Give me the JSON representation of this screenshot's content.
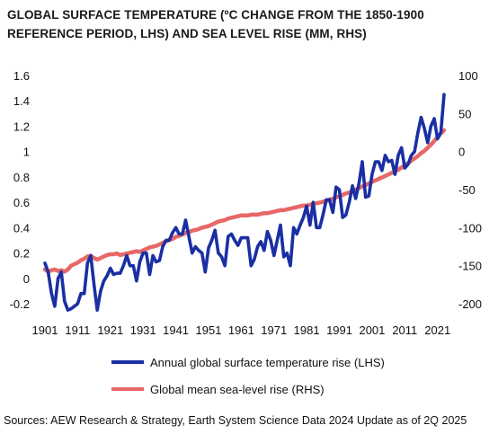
{
  "chart_data": {
    "type": "line",
    "title": "GLOBAL SURFACE TEMPERATURE (ºC CHANGE FROM THE 1850-1900 REFERENCE PERIOD, LHS) AND SEA LEVEL RISE  (MM, RHS)",
    "x": [
      1901,
      1902,
      1903,
      1904,
      1905,
      1906,
      1907,
      1908,
      1909,
      1910,
      1911,
      1912,
      1913,
      1914,
      1915,
      1916,
      1917,
      1918,
      1919,
      1920,
      1921,
      1922,
      1923,
      1924,
      1925,
      1926,
      1927,
      1928,
      1929,
      1930,
      1931,
      1932,
      1933,
      1934,
      1935,
      1936,
      1937,
      1938,
      1939,
      1940,
      1941,
      1942,
      1943,
      1944,
      1945,
      1946,
      1947,
      1948,
      1949,
      1950,
      1951,
      1952,
      1953,
      1954,
      1955,
      1956,
      1957,
      1958,
      1959,
      1960,
      1961,
      1962,
      1963,
      1964,
      1965,
      1966,
      1967,
      1968,
      1969,
      1970,
      1971,
      1972,
      1973,
      1974,
      1975,
      1976,
      1977,
      1978,
      1979,
      1980,
      1981,
      1982,
      1983,
      1984,
      1985,
      1986,
      1987,
      1988,
      1989,
      1990,
      1991,
      1992,
      1993,
      1994,
      1995,
      1996,
      1997,
      1998,
      1999,
      2000,
      2001,
      2002,
      2003,
      2004,
      2005,
      2006,
      2007,
      2008,
      2009,
      2010,
      2011,
      2012,
      2013,
      2014,
      2015,
      2016,
      2017,
      2018,
      2019,
      2020,
      2021,
      2022,
      2023
    ],
    "xticks": [
      "1901",
      "1911",
      "1921",
      "1931",
      "1941",
      "1951",
      "1961",
      "1971",
      "1981",
      "1991",
      "2001",
      "2011",
      "2021"
    ],
    "left_axis": {
      "ylim": [
        -0.2,
        1.6
      ],
      "ticks": [
        "-0.2",
        "0",
        "0.2",
        "0.4",
        "0.6",
        "0.8",
        "1",
        "1.2",
        "1.4",
        "1.6"
      ]
    },
    "right_axis": {
      "ylim": [
        -200,
        100
      ],
      "ticks": [
        "-200",
        "-150",
        "-100",
        "-50",
        "0",
        "50",
        "100"
      ]
    },
    "series": [
      {
        "name": "Annual global surface temperature rise (LHS)",
        "axis": "left",
        "color": "#1a2fa3",
        "values": [
          0.12,
          0.05,
          -0.12,
          -0.22,
          0.0,
          0.05,
          -0.18,
          -0.25,
          -0.24,
          -0.22,
          -0.2,
          -0.12,
          -0.12,
          0.12,
          0.18,
          -0.05,
          -0.25,
          -0.1,
          -0.02,
          0.02,
          0.08,
          0.03,
          0.04,
          0.04,
          0.1,
          0.18,
          0.1,
          0.1,
          -0.02,
          0.13,
          0.2,
          0.2,
          0.03,
          0.18,
          0.13,
          0.14,
          0.25,
          0.3,
          0.3,
          0.36,
          0.4,
          0.35,
          0.35,
          0.46,
          0.33,
          0.2,
          0.25,
          0.22,
          0.2,
          0.05,
          0.24,
          0.3,
          0.38,
          0.2,
          0.17,
          0.1,
          0.33,
          0.35,
          0.3,
          0.26,
          0.32,
          0.32,
          0.32,
          0.1,
          0.15,
          0.25,
          0.29,
          0.22,
          0.37,
          0.3,
          0.18,
          0.3,
          0.42,
          0.17,
          0.2,
          0.1,
          0.4,
          0.35,
          0.42,
          0.48,
          0.57,
          0.42,
          0.6,
          0.4,
          0.4,
          0.5,
          0.62,
          0.62,
          0.52,
          0.72,
          0.7,
          0.48,
          0.5,
          0.6,
          0.73,
          0.63,
          0.75,
          0.92,
          0.64,
          0.65,
          0.82,
          0.92,
          0.92,
          0.85,
          0.97,
          0.92,
          0.93,
          0.82,
          0.97,
          1.03,
          0.87,
          0.9,
          0.97,
          1.0,
          1.15,
          1.27,
          1.18,
          1.07,
          1.2,
          1.26,
          1.1,
          1.15,
          1.45
        ]
      },
      {
        "name": "Global mean sea-level rise (RHS)",
        "axis": "right",
        "color": "#e86767",
        "values": [
          -155,
          -158,
          -156,
          -155,
          -157,
          -156,
          -158,
          -155,
          -150,
          -148,
          -146,
          -143,
          -141,
          -138,
          -137,
          -140,
          -142,
          -140,
          -138,
          -136,
          -135,
          -135,
          -134,
          -136,
          -135,
          -134,
          -133,
          -132,
          -131,
          -132,
          -130,
          -128,
          -126,
          -125,
          -124,
          -122,
          -120,
          -118,
          -116,
          -115,
          -112,
          -111,
          -109,
          -107,
          -106,
          -104,
          -103,
          -102,
          -100,
          -99,
          -98,
          -96,
          -94,
          -92,
          -91,
          -90,
          -88,
          -87,
          -86,
          -85,
          -84,
          -84,
          -84,
          -83,
          -83,
          -83,
          -82,
          -81,
          -81,
          -80,
          -79,
          -78,
          -77,
          -77,
          -76,
          -75,
          -74,
          -73,
          -72,
          -71,
          -71,
          -70,
          -69,
          -68,
          -67,
          -66,
          -65,
          -63,
          -62,
          -60,
          -59,
          -57,
          -55,
          -54,
          -52,
          -50,
          -48,
          -46,
          -44,
          -42,
          -40,
          -38,
          -36,
          -34,
          -32,
          -30,
          -28,
          -26,
          -24,
          -21,
          -18,
          -15,
          -12,
          -9,
          -6,
          -2,
          1,
          5,
          9,
          14,
          19,
          24,
          28
        ]
      }
    ],
    "legend_placement": "bottom",
    "grid": false
  },
  "source": "Sources: AEW Research & Strategy, Earth System Science Data 2024 Update as of 2Q 2025"
}
